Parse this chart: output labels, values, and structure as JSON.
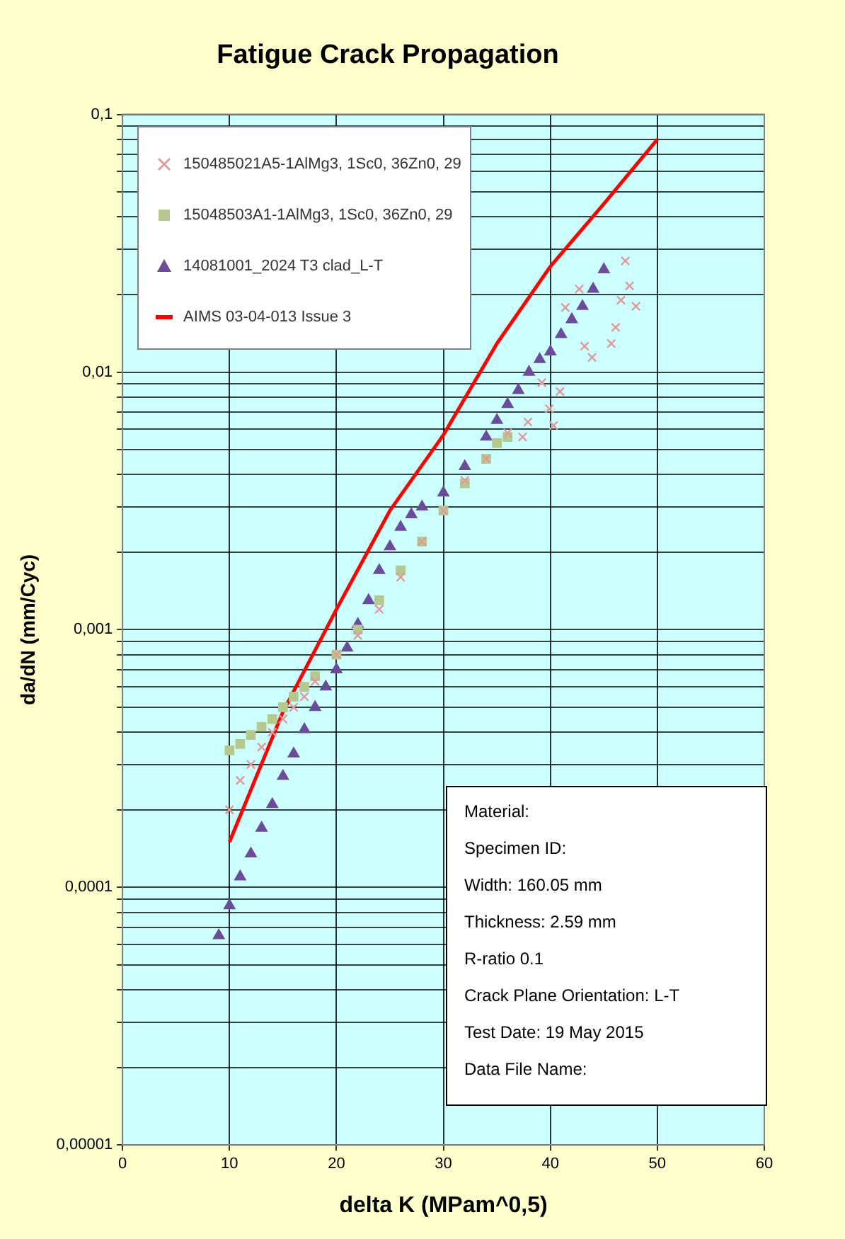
{
  "chart_data": {
    "type": "scatter",
    "title": "Fatigue Crack Propagation",
    "xlabel": "delta K (MPam^0,5)",
    "ylabel": "da/dN (mm/Cyc)",
    "log": "y",
    "grid": true,
    "legend": "top left",
    "xlim": [
      0,
      60
    ],
    "xticks": [
      0,
      10,
      20,
      30,
      40,
      50,
      60
    ],
    "ylim": [
      1e-05,
      0.1
    ],
    "yticks": [
      {
        "value": 1e-05,
        "label": "0,00001"
      },
      {
        "value": 2e-05,
        "label": null
      },
      {
        "value": 3e-05,
        "label": null
      },
      {
        "value": 4e-05,
        "label": null
      },
      {
        "value": 5e-05,
        "label": null
      },
      {
        "value": 6e-05,
        "label": null
      },
      {
        "value": 7e-05,
        "label": null
      },
      {
        "value": 8e-05,
        "label": null
      },
      {
        "value": 9e-05,
        "label": null
      },
      {
        "value": 0.0001,
        "label": "0,0001"
      },
      {
        "value": 0.0002,
        "label": null
      },
      {
        "value": 0.0003,
        "label": null
      },
      {
        "value": 0.0004,
        "label": null
      },
      {
        "value": 0.0005,
        "label": null
      },
      {
        "value": 0.0006,
        "label": null
      },
      {
        "value": 0.0007,
        "label": null
      },
      {
        "value": 0.0008,
        "label": null
      },
      {
        "value": 0.0009,
        "label": null
      },
      {
        "value": 0.001,
        "label": "0,001"
      },
      {
        "value": 0.002,
        "label": null
      },
      {
        "value": 0.003,
        "label": null
      },
      {
        "value": 0.004,
        "label": null
      },
      {
        "value": 0.005,
        "label": null
      },
      {
        "value": 0.006,
        "label": null
      },
      {
        "value": 0.007,
        "label": null
      },
      {
        "value": 0.008,
        "label": null
      },
      {
        "value": 0.009,
        "label": null
      },
      {
        "value": 0.01,
        "label": "0,01"
      },
      {
        "value": 0.02,
        "label": null
      },
      {
        "value": 0.03,
        "label": null
      },
      {
        "value": 0.04,
        "label": null
      },
      {
        "value": 0.05,
        "label": null
      },
      {
        "value": 0.06,
        "label": null
      },
      {
        "value": 0.07,
        "label": null
      },
      {
        "value": 0.08,
        "label": null
      },
      {
        "value": 0.09,
        "label": null
      },
      {
        "value": 0.1,
        "label": "0,1"
      }
    ],
    "series": [
      {
        "name": "150485021A5-1AlMg3, 1Sc0, 36Zn0, 29",
        "type": "scatter",
        "marker": "cross",
        "color": "#e09a9a",
        "x": [
          10,
          11,
          12,
          13,
          14,
          15,
          16,
          17,
          18,
          20,
          22,
          24,
          26,
          28,
          30,
          32,
          34,
          36,
          37.4,
          37.9,
          39.2,
          39.9,
          40.3,
          40.9,
          41.4,
          42.7,
          43.2,
          43.9,
          45.7,
          46.1,
          46.6,
          47,
          47.4,
          48
        ],
        "values": [
          0.0002,
          0.00026,
          0.0003,
          0.00035,
          0.0004,
          0.00045,
          0.0005,
          0.00055,
          0.00063,
          0.0008,
          0.00095,
          0.0012,
          0.0016,
          0.0022,
          0.0029,
          0.0038,
          0.0046,
          0.0058,
          0.0056,
          0.0064,
          0.0091,
          0.0072,
          0.0062,
          0.0084,
          0.0178,
          0.021,
          0.0126,
          0.0114,
          0.0129,
          0.0149,
          0.019,
          0.027,
          0.0216,
          0.018
        ]
      },
      {
        "name": "15048503A1-1AlMg3, 1Sc0, 36Zn0, 29",
        "type": "scatter",
        "marker": "square",
        "color": "#b5c98e",
        "x": [
          10,
          11,
          12,
          13,
          14,
          15,
          16,
          17,
          18,
          20,
          22,
          24,
          26,
          28,
          30,
          32,
          34,
          35,
          36
        ],
        "values": [
          0.00034,
          0.00036,
          0.00039,
          0.00042,
          0.00045,
          0.0005,
          0.00055,
          0.0006,
          0.00066,
          0.0008,
          0.001,
          0.0013,
          0.0017,
          0.0022,
          0.0029,
          0.0037,
          0.0046,
          0.0053,
          0.0056
        ]
      },
      {
        "name": "14081001_2024 T3 clad_L-T",
        "type": "scatter",
        "marker": "triangle",
        "color": "#6b4c9a",
        "x": [
          9,
          10,
          11,
          12,
          13,
          14,
          15,
          16,
          17,
          18,
          19,
          20,
          21,
          22,
          23,
          24,
          25,
          26,
          27,
          28,
          30,
          32,
          34,
          35,
          36,
          37,
          38,
          39,
          40,
          41,
          42,
          43,
          44,
          45
        ],
        "values": [
          6.5e-05,
          8.5e-05,
          0.00011,
          0.000135,
          0.00017,
          0.00021,
          0.00027,
          0.00033,
          0.00041,
          0.0005,
          0.0006,
          0.0007,
          0.00085,
          0.00105,
          0.0013,
          0.0017,
          0.0021,
          0.0025,
          0.0028,
          0.003,
          0.0034,
          0.0043,
          0.0056,
          0.0065,
          0.0075,
          0.0085,
          0.01,
          0.0112,
          0.012,
          0.014,
          0.016,
          0.018,
          0.021,
          0.025
        ]
      },
      {
        "name": "AIMS 03-04-013 Issue 3",
        "type": "line",
        "marker": "none",
        "color": "#ff0000",
        "x": [
          10,
          15,
          20,
          25,
          30,
          35,
          40,
          45,
          50
        ],
        "values": [
          0.00015,
          0.00048,
          0.0012,
          0.0029,
          0.0057,
          0.0129,
          0.0257,
          0.045,
          0.08
        ]
      }
    ],
    "annotations": [
      "Material:",
      "Specimen ID:",
      "Width: 160.05 mm",
      "Thickness: 2.59 mm",
      "R-ratio 0.1",
      "Crack Plane Orientation: L-T",
      "Test Date: 19 May 2015",
      "Data File Name:"
    ]
  }
}
